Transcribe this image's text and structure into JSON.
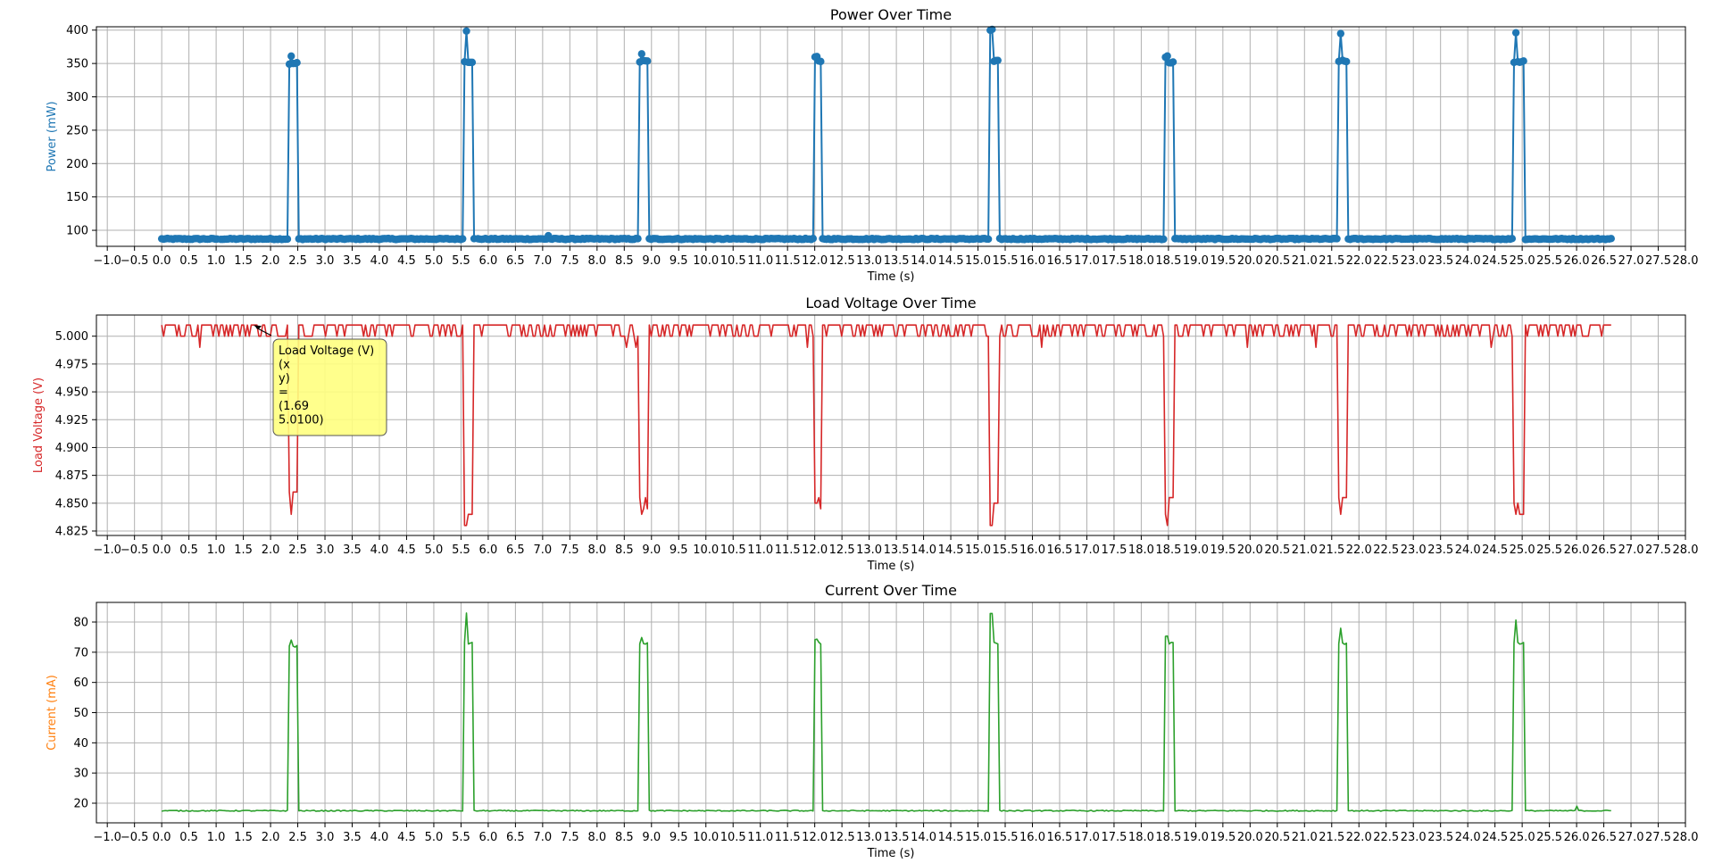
{
  "chart_data": [
    {
      "type": "line",
      "key": "power",
      "title": "Power Over Time",
      "xlabel": "Time (s)",
      "ylabel": "Power (mW)",
      "label_color": "#1f77b4",
      "series": [
        {
          "color": "#1f77b4",
          "marker": "circle"
        }
      ],
      "xlim": [
        -1.2,
        28.0
      ],
      "ylim": [
        76,
        405
      ],
      "yticks": [
        "100",
        "150",
        "200",
        "250",
        "300",
        "350",
        "400"
      ],
      "baseline": 87,
      "t_end": 26.65,
      "pulses": [
        {
          "start": 2.33,
          "end": 2.5,
          "level": 350,
          "peak": 360
        },
        {
          "start": 5.55,
          "end": 5.74,
          "level": 353,
          "peak": 400
        },
        {
          "start": 8.77,
          "end": 8.95,
          "level": 353,
          "peak": 365
        },
        {
          "start": 11.98,
          "end": 12.14,
          "level": 352,
          "peak": 360
        },
        {
          "start": 15.2,
          "end": 15.38,
          "level": 353,
          "peak": 400
        },
        {
          "start": 18.42,
          "end": 18.6,
          "level": 352,
          "peak": 360
        },
        {
          "start": 21.63,
          "end": 21.8,
          "level": 353,
          "peak": 396
        },
        {
          "start": 24.85,
          "end": 25.03,
          "level": 353,
          "peak": 396
        }
      ],
      "gaps": [
        1.05,
        5.78
      ],
      "bumps": [
        {
          "t": 7.1,
          "v": 92
        }
      ]
    },
    {
      "type": "line",
      "key": "voltage",
      "title": "Load Voltage Over Time",
      "xlabel": "Time (s)",
      "ylabel": "Load Voltage (V)",
      "label_color": "#d62728",
      "series": [
        {
          "color": "#d62728",
          "marker": "none"
        }
      ],
      "xlim": [
        -1.2,
        28.0
      ],
      "ylim": [
        4.821,
        5.019
      ],
      "yticks": [
        "4.825",
        "4.850",
        "4.875",
        "4.900",
        "4.925",
        "4.950",
        "4.975",
        "5.000"
      ],
      "baseline": 5.01,
      "t_end": 26.65,
      "pulses": [
        {
          "start": 2.33,
          "end": 2.5,
          "level": 4.86,
          "peak": 4.85
        },
        {
          "start": 5.55,
          "end": 5.74,
          "level": 4.84,
          "peak": 4.83
        },
        {
          "start": 8.77,
          "end": 8.95,
          "level": 4.855,
          "peak": 4.84
        },
        {
          "start": 11.98,
          "end": 12.14,
          "level": 4.855,
          "peak": 4.85
        },
        {
          "start": 15.2,
          "end": 15.38,
          "level": 4.85,
          "peak": 4.83
        },
        {
          "start": 18.42,
          "end": 18.6,
          "level": 4.855,
          "peak": 4.84
        },
        {
          "start": 21.63,
          "end": 21.8,
          "level": 4.855,
          "peak": 4.84
        },
        {
          "start": 24.85,
          "end": 25.03,
          "level": 4.85,
          "peak": 4.84
        }
      ],
      "annotation": {
        "lines": [
          "Load Voltage (V)",
          "(x",
          "y)",
          "=",
          "(1.69",
          "5.0100)"
        ],
        "x": 1.69,
        "y": 5.01,
        "bg": "#ffff80"
      }
    },
    {
      "type": "line",
      "key": "current",
      "title": "Current Over Time",
      "xlabel": "Time (s)",
      "ylabel": "Current (mA)",
      "label_color": "#ff7f0e",
      "series": [
        {
          "color": "#2ca02c",
          "marker": "none"
        }
      ],
      "xlim": [
        -1.2,
        28.0
      ],
      "ylim": [
        13.5,
        86.5
      ],
      "yticks": [
        "20",
        "30",
        "40",
        "50",
        "60",
        "70",
        "80"
      ],
      "baseline": 17.5,
      "t_end": 26.65,
      "pulses": [
        {
          "start": 2.33,
          "end": 2.5,
          "level": 72,
          "peak": 74
        },
        {
          "start": 5.55,
          "end": 5.74,
          "level": 73,
          "peak": 83
        },
        {
          "start": 8.77,
          "end": 8.95,
          "level": 73,
          "peak": 75
        },
        {
          "start": 11.98,
          "end": 12.14,
          "level": 73,
          "peak": 74
        },
        {
          "start": 15.2,
          "end": 15.38,
          "level": 73,
          "peak": 83
        },
        {
          "start": 18.42,
          "end": 18.6,
          "level": 73,
          "peak": 75
        },
        {
          "start": 21.63,
          "end": 21.8,
          "level": 73,
          "peak": 78
        },
        {
          "start": 24.85,
          "end": 25.03,
          "level": 73,
          "peak": 81
        }
      ],
      "bumps": [
        {
          "t": 26.0,
          "v": 19
        }
      ]
    }
  ],
  "xticks": [
    "−1.0",
    "−0.5",
    "0.0",
    "0.5",
    "1.0",
    "1.5",
    "2.0",
    "2.5",
    "3.0",
    "3.5",
    "4.0",
    "4.5",
    "5.0",
    "5.5",
    "6.0",
    "6.5",
    "7.0",
    "7.5",
    "8.0",
    "8.5",
    "9.0",
    "9.5",
    "10.0",
    "10.5",
    "11.0",
    "11.5",
    "12.0",
    "12.5",
    "13.0",
    "13.5",
    "14.0",
    "14.5",
    "15.0",
    "15.5",
    "16.0",
    "16.5",
    "17.0",
    "17.5",
    "18.0",
    "18.5",
    "19.0",
    "19.5",
    "20.0",
    "20.5",
    "21.0",
    "21.5",
    "22.0",
    "22.5",
    "23.0",
    "23.5",
    "24.0",
    "24.5",
    "25.0",
    "25.5",
    "26.0",
    "26.5",
    "27.0",
    "27.5",
    "28.0"
  ]
}
